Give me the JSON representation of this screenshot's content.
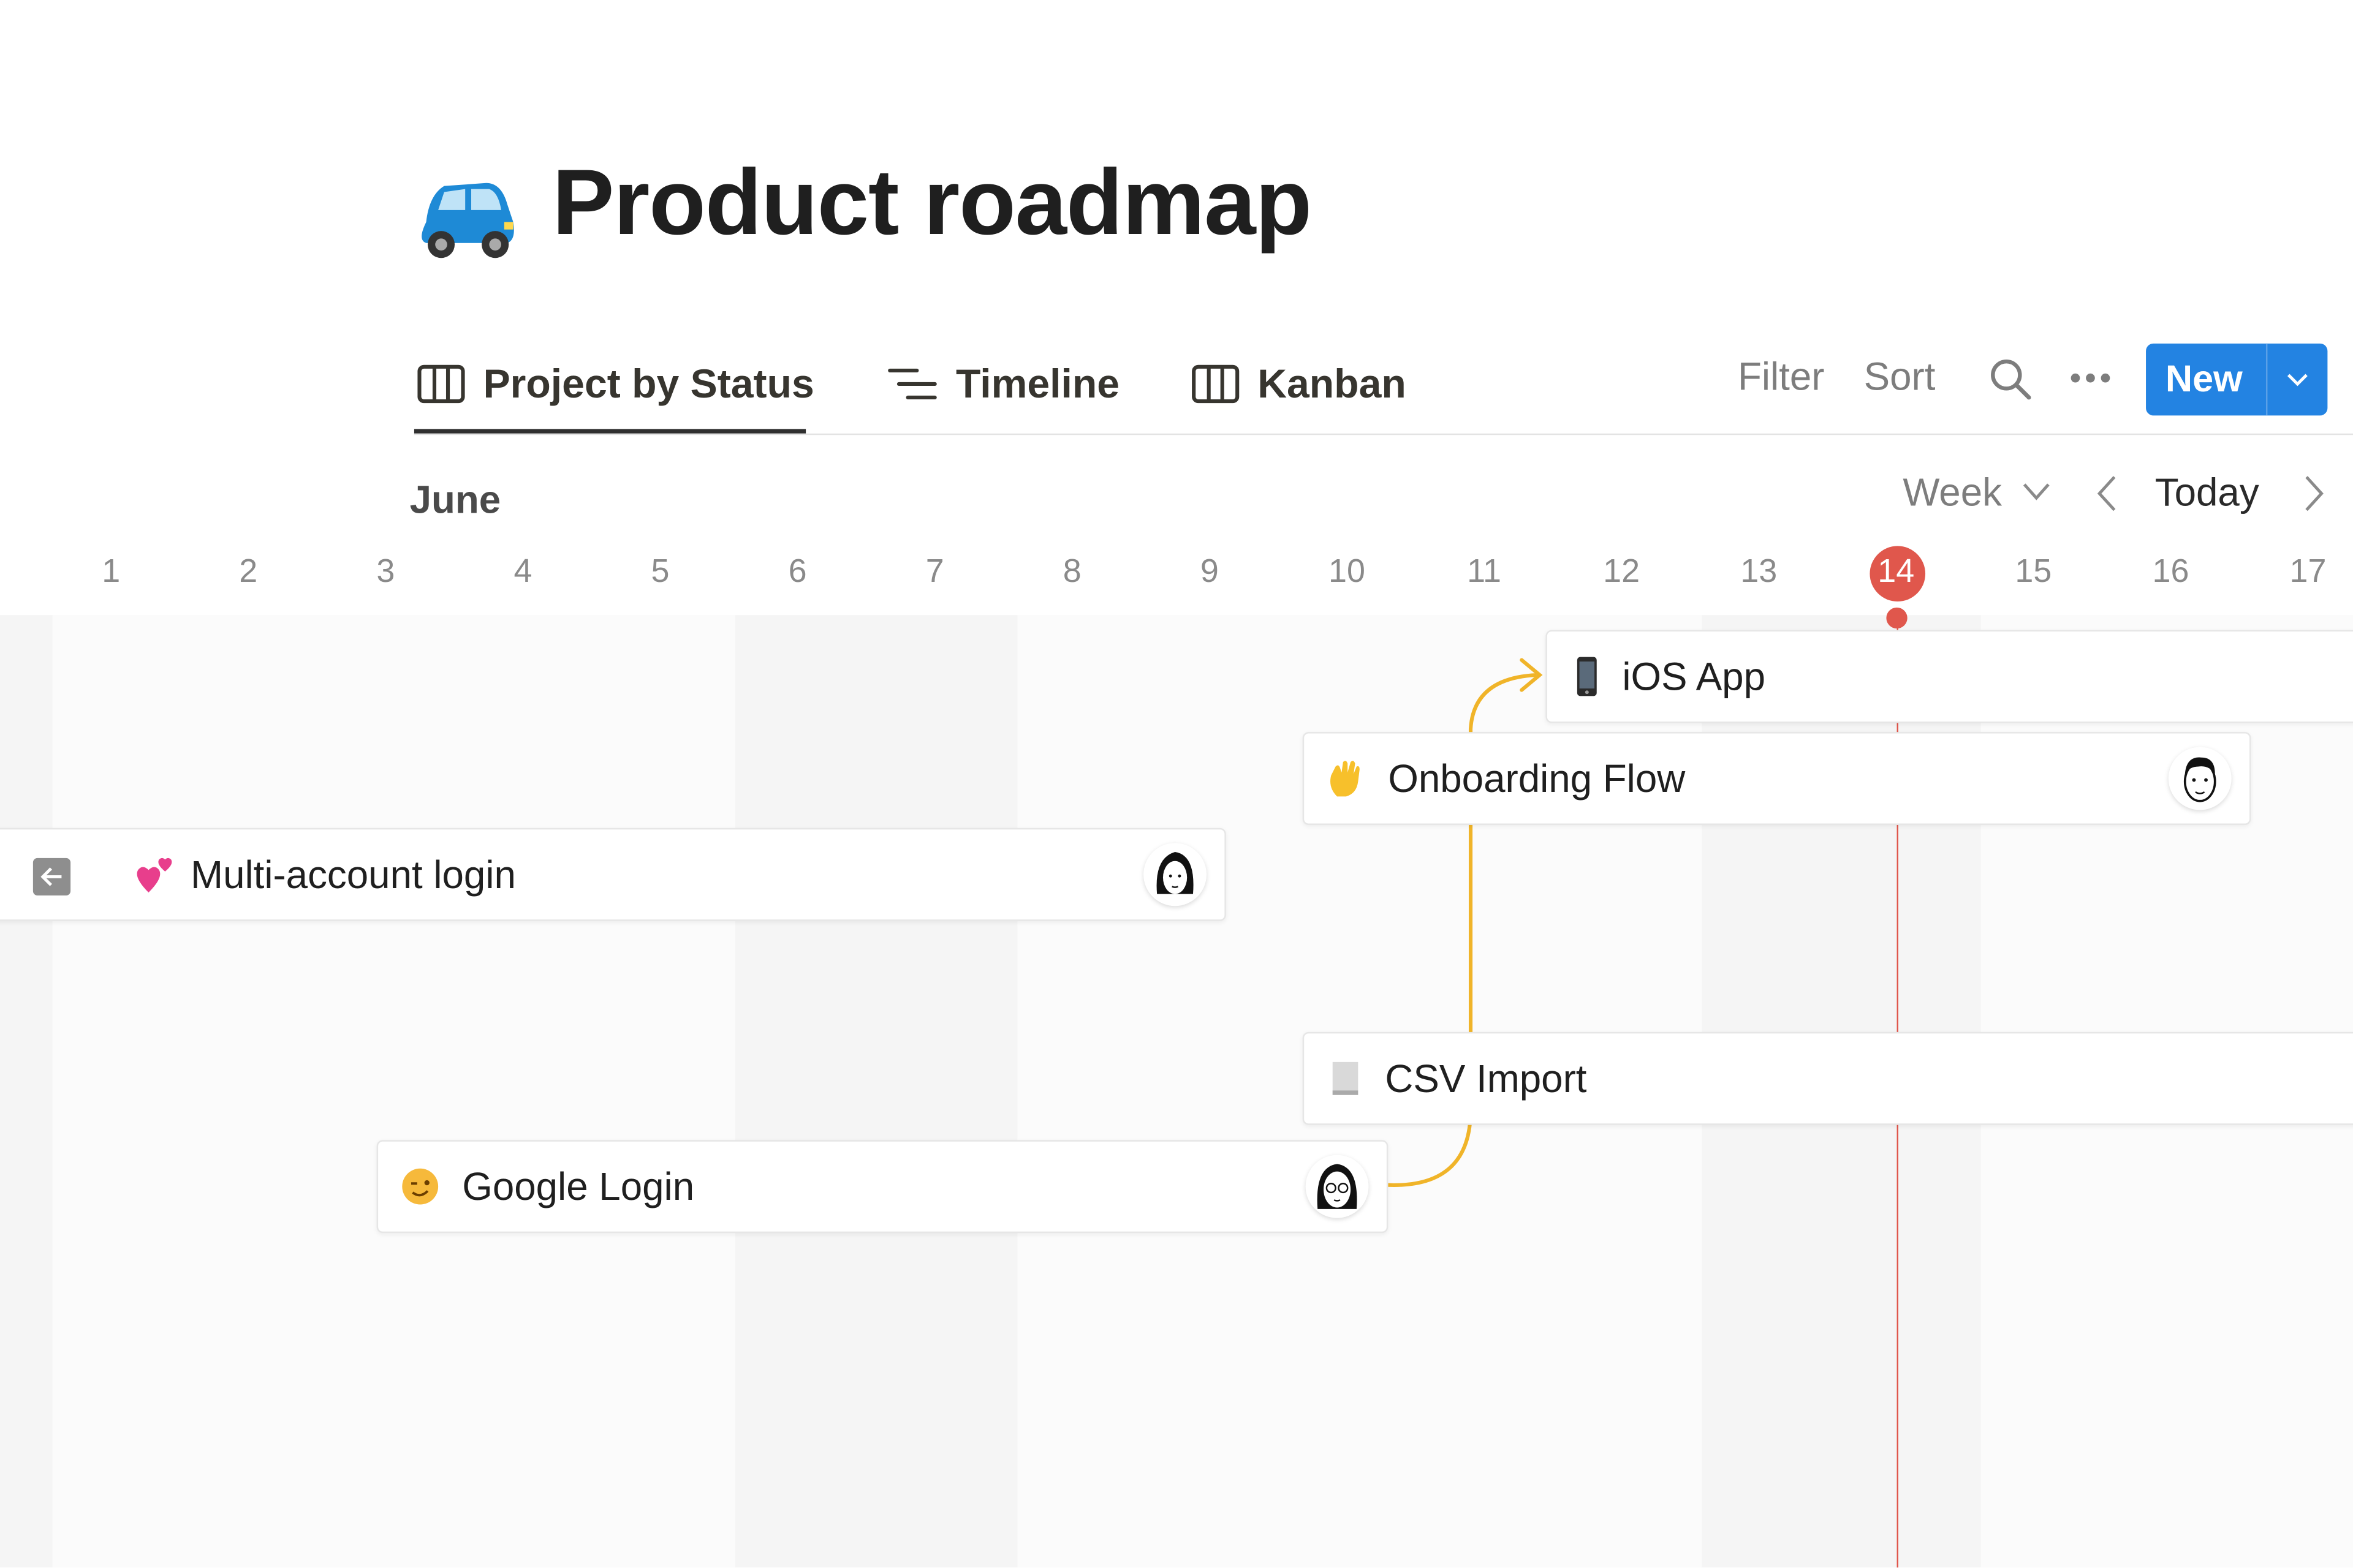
{
  "page": {
    "title": "Product roadmap",
    "icon": "blue-car-emoji"
  },
  "tabs": [
    {
      "label": "Project by Status",
      "icon": "board-icon",
      "active": true
    },
    {
      "label": "Timeline",
      "icon": "timeline-list-icon",
      "active": false
    },
    {
      "label": "Kanban",
      "icon": "board-icon",
      "active": false
    }
  ],
  "toolbar": {
    "filter": "Filter",
    "sort": "Sort",
    "search_icon": "search-icon",
    "more_icon": "more-horizontal-icon",
    "new_label": "New",
    "accent": "#2383e2"
  },
  "timeline": {
    "month": "June",
    "scale": "Week",
    "today_label": "Today",
    "days": [
      "1",
      "2",
      "3",
      "4",
      "5",
      "6",
      "7",
      "8",
      "9",
      "10",
      "11",
      "12",
      "13",
      "14",
      "15",
      "16",
      "17"
    ],
    "today_day": "14",
    "today_color": "#e0574c",
    "dependency_color": "#f0b429"
  },
  "items": [
    {
      "name": "iOS App",
      "icon": "mobile-phone-emoji"
    },
    {
      "name": "Onboarding Flow",
      "icon": "waving-hand-emoji",
      "assignee": "avatar-man"
    },
    {
      "name": "Multi-account login",
      "icon": "two-hearts-emoji",
      "assignee": "avatar-woman"
    },
    {
      "name": "CSV Import",
      "icon": "page-emoji"
    },
    {
      "name": "Google Login",
      "icon": "winking-face-emoji",
      "assignee": "avatar-woman-glasses"
    }
  ]
}
